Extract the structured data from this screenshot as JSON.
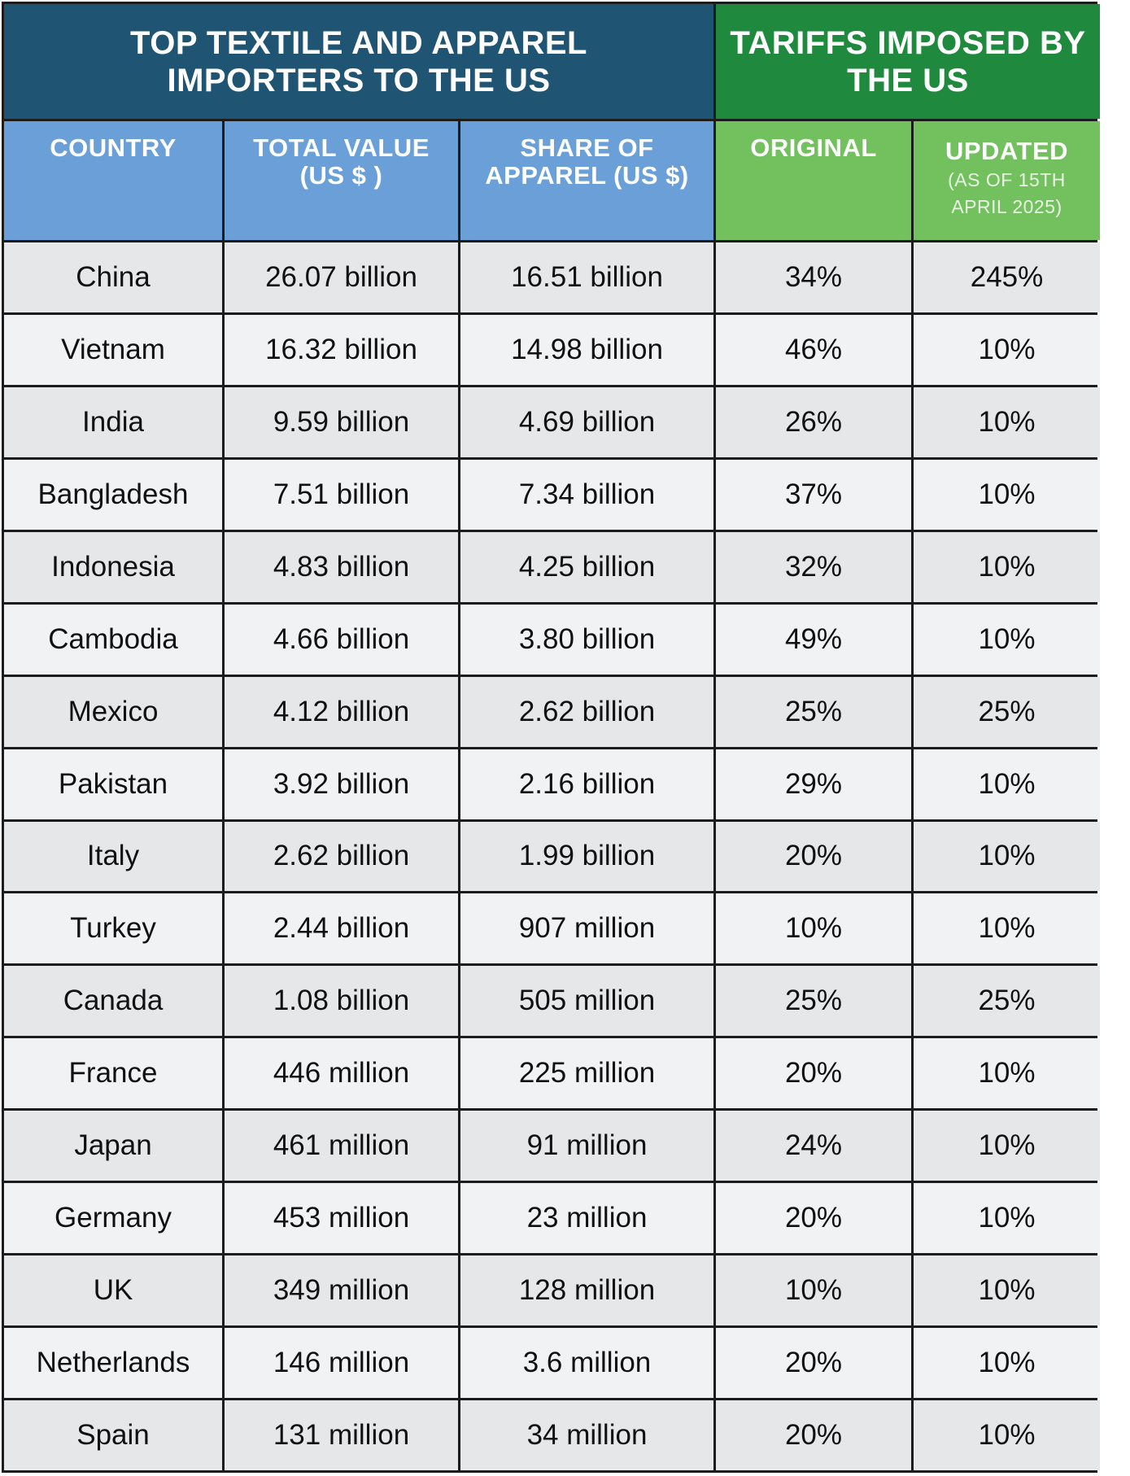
{
  "banner": {
    "left_line1": "TOP TEXTILE AND APPAREL",
    "left_line2": "IMPORTERS TO THE US",
    "right_line1": "TARIFFS IMPOSED BY",
    "right_line2": "THE US"
  },
  "headers": {
    "country": "COUNTRY",
    "total_value_line1": "TOTAL VALUE",
    "total_value_line2": "(US $ )",
    "share_line1": "SHARE OF",
    "share_line2": "APPAREL (US $)",
    "original": "ORIGINAL",
    "updated": "UPDATED",
    "updated_note_line1": "(AS OF 15TH",
    "updated_note_line2": "APRIL 2025)"
  },
  "chart_data": {
    "type": "table",
    "columns": [
      "COUNTRY",
      "TOTAL VALUE (US $ )",
      "SHARE OF APPAREL (US $)",
      "ORIGINAL",
      "UPDATED (AS OF 15TH APRIL 2025)"
    ],
    "rows": [
      [
        "China",
        "26.07 billion",
        "16.51 billion",
        "34%",
        "245%"
      ],
      [
        "Vietnam",
        "16.32 billion",
        "14.98 billion",
        "46%",
        "10%"
      ],
      [
        "India",
        "9.59 billion",
        "4.69 billion",
        "26%",
        "10%"
      ],
      [
        "Bangladesh",
        "7.51 billion",
        "7.34 billion",
        "37%",
        "10%"
      ],
      [
        "Indonesia",
        "4.83 billion",
        "4.25 billion",
        "32%",
        "10%"
      ],
      [
        "Cambodia",
        "4.66 billion",
        "3.80 billion",
        "49%",
        "10%"
      ],
      [
        "Mexico",
        "4.12 billion",
        "2.62 billion",
        "25%",
        "25%"
      ],
      [
        "Pakistan",
        "3.92 billion",
        "2.16 billion",
        "29%",
        "10%"
      ],
      [
        "Italy",
        "2.62 billion",
        "1.99 billion",
        "20%",
        "10%"
      ],
      [
        "Turkey",
        "2.44 billion",
        "907 million",
        "10%",
        "10%"
      ],
      [
        "Canada",
        "1.08 billion",
        "505 million",
        "25%",
        "25%"
      ],
      [
        "France",
        "446 million",
        "225 million",
        "20%",
        "10%"
      ],
      [
        "Japan",
        "461 million",
        "91 million",
        "24%",
        "10%"
      ],
      [
        "Germany",
        "453 million",
        "23 million",
        "20%",
        "10%"
      ],
      [
        "UK",
        "349 million",
        "128 million",
        "10%",
        "10%"
      ],
      [
        "Netherlands",
        "146 million",
        "3.6 million",
        "20%",
        "10%"
      ],
      [
        "Spain",
        "131 million",
        "34 million",
        "20%",
        "10%"
      ]
    ]
  }
}
